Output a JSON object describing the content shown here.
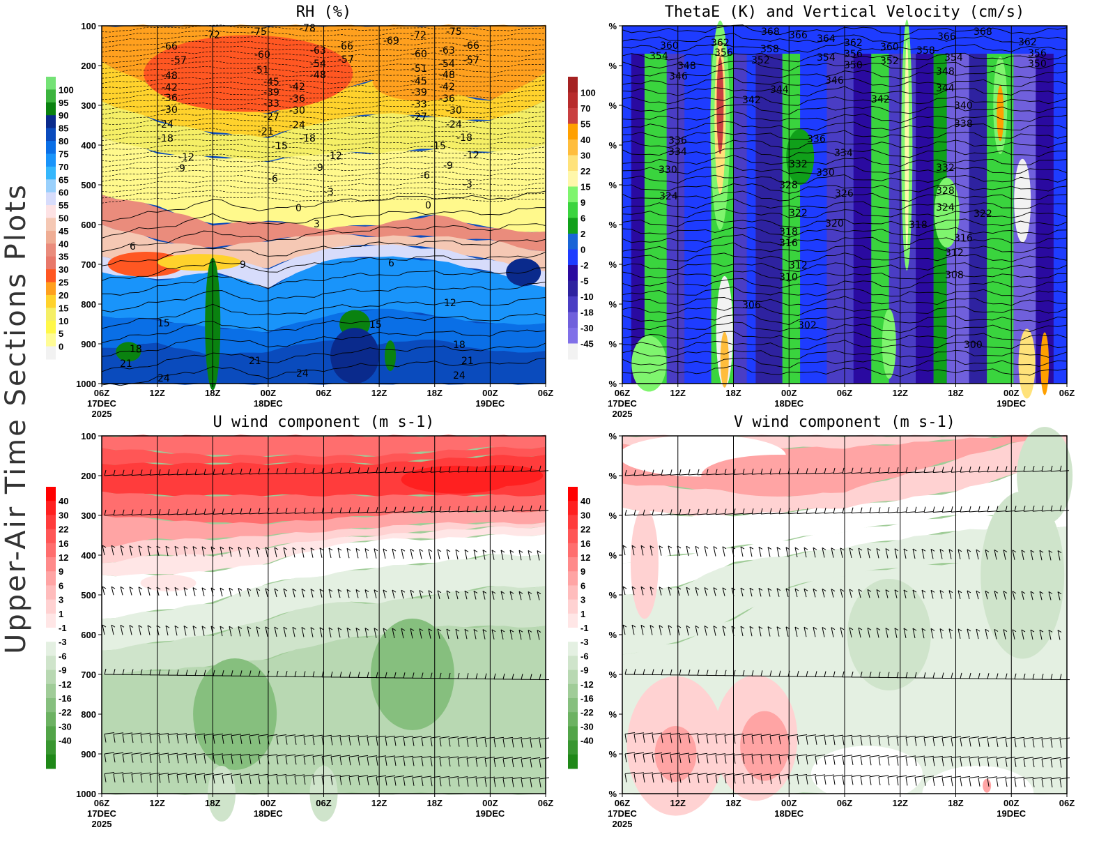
{
  "side_title": "Upper-Air Time Sections Plots",
  "chart_data": [
    {
      "type": "heatmap",
      "title": "RH (%)",
      "y_ticks": [
        "100",
        "200",
        "300",
        "400",
        "500",
        "600",
        "700",
        "800",
        "900",
        "1000"
      ],
      "ylim": [
        1000,
        100
      ],
      "x_ticks": [
        "06Z",
        "12Z",
        "18Z",
        "00Z",
        "06Z",
        "12Z",
        "18Z",
        "00Z",
        "06Z"
      ],
      "x_dates": {
        "0": "17DEC",
        "3": "18DEC",
        "7": "19DEC"
      },
      "x_year": "2025",
      "colorbar": {
        "labels": [
          "100",
          "95",
          "90",
          "85",
          "80",
          "75",
          "70",
          "65",
          "60",
          "55",
          "50",
          "45",
          "40",
          "35",
          "30",
          "25",
          "20",
          "15",
          "10",
          "5",
          "0"
        ],
        "colors": [
          "#74e276",
          "#3cb43e",
          "#0a8210",
          "#0a2a8c",
          "#0a4bbd",
          "#0a6fe6",
          "#1994fa",
          "#35b7fc",
          "#99d0fc",
          "#d7dcfb",
          "#fde2e4",
          "#f5c8b4",
          "#efad94",
          "#ea8c7c",
          "#e8786a",
          "#ff5722",
          "#ffa01e",
          "#ffd22c",
          "#f5ef66",
          "#fff84a",
          "#fffc96",
          "#f2f2f2"
        ]
      },
      "contour_labels": [
        "-78",
        "-75",
        "-72",
        "-69",
        "-66",
        "-66",
        "-72",
        "-75",
        "-66",
        "-57",
        "-63",
        "-60",
        "-60",
        "-63",
        "-57",
        "-57",
        "-54",
        "-54",
        "-51",
        "-51",
        "-48",
        "-48",
        "-48",
        "-45",
        "-45",
        "-42",
        "-42",
        "-42",
        "-39",
        "-39",
        "-36",
        "-36",
        "-36",
        "-33",
        "-33",
        "-30",
        "-30",
        "-30",
        "-27",
        "-27",
        "-24",
        "-24",
        "-24",
        "-21",
        "-18",
        "-18",
        "-18",
        "-15",
        "-15",
        "-12",
        "-12",
        "-12",
        "-9",
        "-9",
        "-9",
        "-6",
        "-6",
        "-3",
        "-3",
        "0",
        "0",
        "3",
        "6",
        "6",
        "9",
        "12",
        "15",
        "15",
        "18",
        "18",
        "21",
        "21",
        "21",
        "24",
        "24",
        "24"
      ]
    },
    {
      "type": "heatmap",
      "title": "ThetaE (K) and Vertical Velocity (cm/s)",
      "y_ticks": [
        "%",
        "%",
        "%",
        "%",
        "%",
        "%",
        "%",
        "%",
        "%",
        "%"
      ],
      "x_ticks": [
        "06Z",
        "12Z",
        "18Z",
        "00Z",
        "06Z",
        "12Z",
        "18Z",
        "00Z",
        "06Z"
      ],
      "x_dates": {
        "0": "17DEC",
        "3": "18DEC",
        "7": "19DEC"
      },
      "x_year": "2025",
      "colorbar": {
        "labels": [
          "100",
          "70",
          "55",
          "40",
          "30",
          "22",
          "15",
          "9",
          "6",
          "2",
          "0",
          "-2",
          "-5",
          "-10",
          "-18",
          "-30",
          "-45"
        ],
        "colors": [
          "#a52222",
          "#b82c2c",
          "#c94040",
          "#ffa000",
          "#ffbd3c",
          "#ffe27a",
          "#fff7aa",
          "#7ff56e",
          "#3ad43e",
          "#10a01a",
          "#1964d6",
          "#1e3cff",
          "#2a0aa0",
          "#2e22a0",
          "#4a3dc4",
          "#7060dc",
          "#8070e8",
          "#f2f2f2"
        ]
      },
      "contour_labels": [
        "368",
        "366",
        "364",
        "362",
        "362",
        "360",
        "360",
        "366",
        "368",
        "362",
        "358",
        "358",
        "356",
        "356",
        "356",
        "354",
        "354",
        "354",
        "352",
        "352",
        "350",
        "350",
        "348",
        "348",
        "346",
        "346",
        "344",
        "344",
        "342",
        "342",
        "340",
        "338",
        "336",
        "336",
        "334",
        "334",
        "332",
        "332",
        "330",
        "330",
        "328",
        "328",
        "326",
        "324",
        "324",
        "322",
        "322",
        "320",
        "318",
        "318",
        "316",
        "316",
        "312",
        "312",
        "310",
        "308",
        "306",
        "302",
        "300"
      ]
    },
    {
      "type": "heatmap",
      "title": "U wind component (m s-1)",
      "y_ticks": [
        "100",
        "200",
        "300",
        "400",
        "500",
        "600",
        "700",
        "800",
        "900",
        "1000"
      ],
      "ylim": [
        1000,
        100
      ],
      "x_ticks": [
        "06Z",
        "12Z",
        "18Z",
        "00Z",
        "06Z",
        "12Z",
        "18Z",
        "00Z",
        "06Z"
      ],
      "x_dates": {
        "0": "17DEC",
        "3": "18DEC",
        "7": "19DEC"
      },
      "x_year": "2025",
      "colorbar": {
        "labels": [
          "40",
          "30",
          "22",
          "16",
          "12",
          "9",
          "6",
          "3",
          "1",
          "-1",
          "-3",
          "-6",
          "-9",
          "-12",
          "-16",
          "-22",
          "-30",
          "-40"
        ],
        "colors": [
          "#ff0000",
          "#ff2020",
          "#ff3c3c",
          "#ff5656",
          "#ff6e6e",
          "#ff8a8a",
          "#ffa4a4",
          "#ffbcbc",
          "#ffd2d2",
          "#ffe6e6",
          "#ffffff",
          "#e4f0e2",
          "#cfe4cb",
          "#b8d8b2",
          "#a0cc98",
          "#86bf7e",
          "#6cb262",
          "#52a448",
          "#389630",
          "#1f8818"
        ]
      },
      "wind_barb_levels": [
        "200",
        "300",
        "400",
        "500",
        "600",
        "700",
        "850",
        "900",
        "950"
      ]
    },
    {
      "type": "heatmap",
      "title": "V wind component (m s-1)",
      "y_ticks": [
        "%",
        "%",
        "%",
        "%",
        "%",
        "%",
        "%",
        "%",
        "%",
        "%"
      ],
      "x_ticks": [
        "06Z",
        "12Z",
        "18Z",
        "00Z",
        "06Z",
        "12Z",
        "18Z",
        "00Z",
        "06Z"
      ],
      "x_dates": {
        "0": "17DEC",
        "3": "18DEC",
        "7": "19DEC"
      },
      "x_year": "2025",
      "colorbar": {
        "labels": [
          "40",
          "30",
          "22",
          "16",
          "12",
          "9",
          "6",
          "3",
          "1",
          "-1",
          "-3",
          "-6",
          "-9",
          "-12",
          "-16",
          "-22",
          "-30",
          "-40"
        ],
        "colors": [
          "#ff0000",
          "#ff2020",
          "#ff3c3c",
          "#ff5656",
          "#ff6e6e",
          "#ff8a8a",
          "#ffa4a4",
          "#ffbcbc",
          "#ffd2d2",
          "#ffe6e6",
          "#ffffff",
          "#e4f0e2",
          "#cfe4cb",
          "#b8d8b2",
          "#a0cc98",
          "#86bf7e",
          "#6cb262",
          "#52a448",
          "#389630",
          "#1f8818"
        ]
      },
      "wind_barb_levels": [
        "200",
        "300",
        "400",
        "500",
        "600",
        "700",
        "850",
        "900",
        "950"
      ]
    }
  ]
}
